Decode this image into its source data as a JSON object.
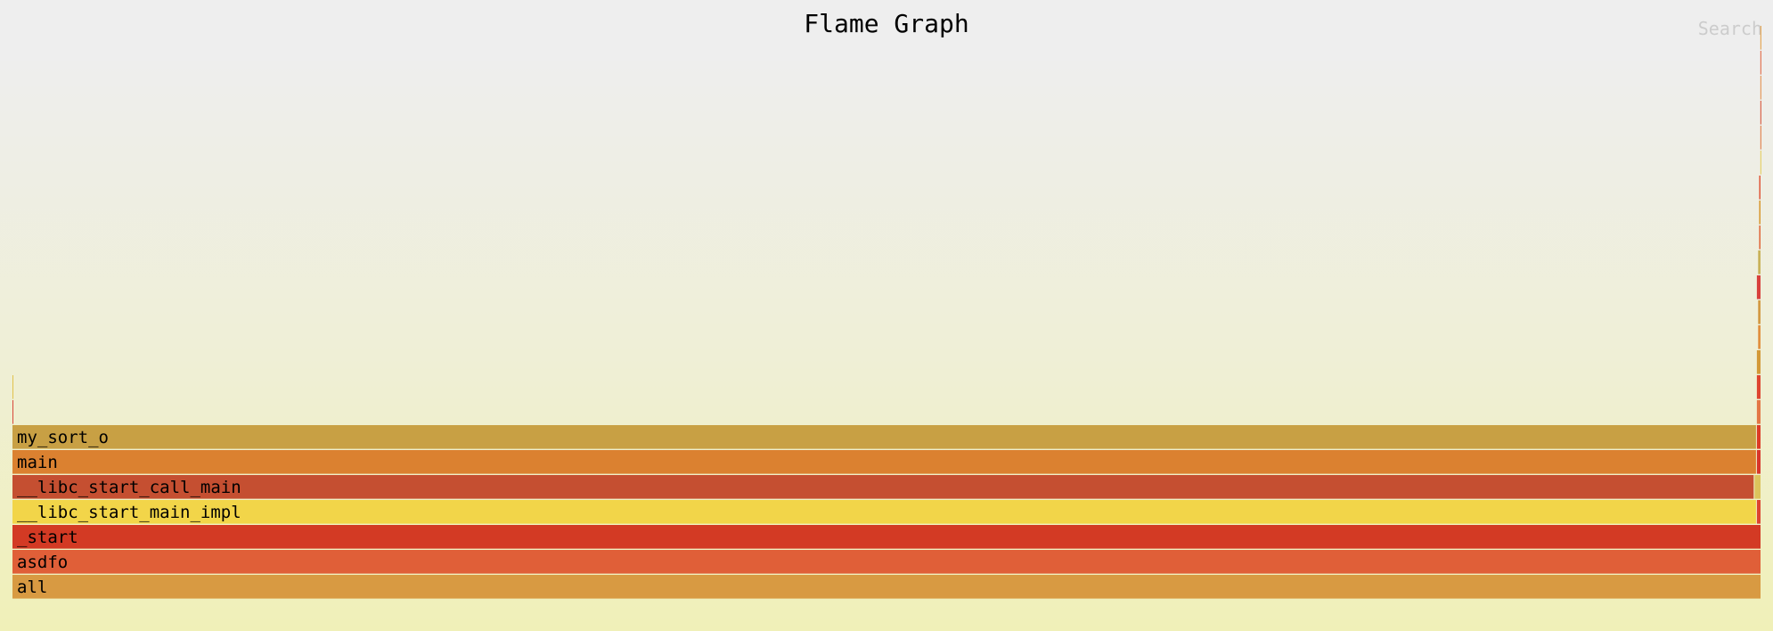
{
  "header": {
    "title": "Flame Graph",
    "search_label": "Search"
  },
  "chart_data": {
    "type": "flame",
    "title": "Flame Graph",
    "total": 1.0,
    "frames": [
      {
        "name": "all",
        "depth": 0,
        "start": 0.0,
        "width": 1.0,
        "color": "#d89a42"
      },
      {
        "name": "asdfo",
        "depth": 1,
        "start": 0.0,
        "width": 1.0,
        "color": "#e05f38"
      },
      {
        "name": "_start",
        "depth": 2,
        "start": 0.0,
        "width": 1.0,
        "color": "#d33a24"
      },
      {
        "name": "__libc_start_main_impl",
        "depth": 3,
        "start": 0.0,
        "width": 0.9974,
        "color": "#f2d549"
      },
      {
        "name": "",
        "depth": 3,
        "start": 0.9974,
        "width": 0.0026,
        "color": "#dd4430"
      },
      {
        "name": "__libc_start_call_main",
        "depth": 4,
        "start": 0.0,
        "width": 0.9961,
        "color": "#c54f31"
      },
      {
        "name": "",
        "depth": 4,
        "start": 0.9961,
        "width": 0.0039,
        "color": "#dcc35c"
      },
      {
        "name": "main",
        "depth": 5,
        "start": 0.0,
        "width": 0.9974,
        "color": "#db8130"
      },
      {
        "name": "",
        "depth": 5,
        "start": 0.9974,
        "width": 0.0026,
        "color": "#d8352b"
      },
      {
        "name": "my_sort_o",
        "depth": 6,
        "start": 0.0,
        "width": 0.9974,
        "color": "#c8a044"
      },
      {
        "name": "",
        "depth": 6,
        "start": 0.9974,
        "width": 0.0026,
        "color": "#dd3b26"
      },
      {
        "name": "",
        "depth": 7,
        "start": 0.0,
        "width": 0.0008,
        "color": "#d8483a"
      },
      {
        "name": "",
        "depth": 7,
        "start": 0.9974,
        "width": 0.0026,
        "color": "#e37746"
      },
      {
        "name": "",
        "depth": 8,
        "start": 0.0,
        "width": 0.0008,
        "color": "#e1c24c"
      },
      {
        "name": "",
        "depth": 8,
        "start": 0.9974,
        "width": 0.0026,
        "color": "#de4530"
      },
      {
        "name": "",
        "depth": 9,
        "start": 0.9974,
        "width": 0.0026,
        "color": "#d39938"
      },
      {
        "name": "",
        "depth": 10,
        "start": 0.9981,
        "width": 0.0019,
        "color": "#e1903f"
      },
      {
        "name": "",
        "depth": 11,
        "start": 0.9981,
        "width": 0.0019,
        "color": "#d39a44"
      },
      {
        "name": "",
        "depth": 12,
        "start": 0.9974,
        "width": 0.0026,
        "color": "#d8403c"
      },
      {
        "name": "",
        "depth": 13,
        "start": 0.9981,
        "width": 0.0019,
        "color": "#c9b25a"
      },
      {
        "name": "",
        "depth": 14,
        "start": 0.9987,
        "width": 0.0013,
        "color": "#e0683a"
      },
      {
        "name": "",
        "depth": 15,
        "start": 0.9987,
        "width": 0.0013,
        "color": "#d89830"
      },
      {
        "name": "",
        "depth": 16,
        "start": 0.9987,
        "width": 0.0013,
        "color": "#e05a3c"
      },
      {
        "name": "",
        "depth": 17,
        "start": 0.9994,
        "width": 0.0006,
        "color": "#e5cb55"
      },
      {
        "name": "",
        "depth": 18,
        "start": 0.9994,
        "width": 0.0006,
        "color": "#e0743a"
      },
      {
        "name": "",
        "depth": 19,
        "start": 0.9994,
        "width": 0.0006,
        "color": "#d64a2c"
      },
      {
        "name": "",
        "depth": 20,
        "start": 0.9994,
        "width": 0.0006,
        "color": "#e38a44"
      },
      {
        "name": "",
        "depth": 21,
        "start": 0.9994,
        "width": 0.0006,
        "color": "#e26038"
      },
      {
        "name": "",
        "depth": 22,
        "start": 0.9994,
        "width": 0.0006,
        "color": "#e39a3a"
      }
    ]
  }
}
